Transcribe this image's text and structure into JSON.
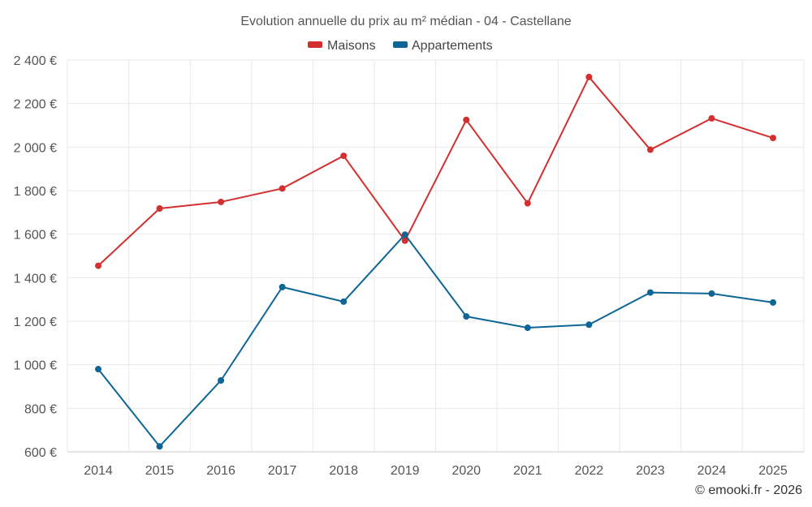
{
  "chart_data": {
    "type": "line",
    "title": "Evolution annuelle du prix au m² médian - 04 - Castellane",
    "categories": [
      "2014",
      "2015",
      "2016",
      "2017",
      "2018",
      "2019",
      "2020",
      "2021",
      "2022",
      "2023",
      "2024",
      "2025"
    ],
    "series": [
      {
        "name": "Maisons",
        "color": "#d32f2f",
        "values": [
          1455,
          1718,
          1748,
          1810,
          1960,
          1570,
          2125,
          1742,
          2322,
          1988,
          2132,
          2042
        ]
      },
      {
        "name": "Appartements",
        "color": "#0d6696",
        "values": [
          980,
          625,
          928,
          1357,
          1290,
          1598,
          1222,
          1170,
          1184,
          1332,
          1327,
          1286
        ]
      }
    ],
    "y_ticks": [
      600,
      800,
      1000,
      1200,
      1400,
      1600,
      1800,
      2000,
      2200,
      2400
    ],
    "y_tick_labels": [
      "600 €",
      "800 €",
      "1 000 €",
      "1 200 €",
      "1 400 €",
      "1 600 €",
      "1 800 €",
      "2 000 €",
      "2 200 €",
      "2 400 €"
    ],
    "ylim": [
      600,
      2400
    ],
    "xlabel": "",
    "ylabel": "",
    "grid": true,
    "legend_position": "top-center"
  },
  "credit": "© emooki.fr - 2026"
}
